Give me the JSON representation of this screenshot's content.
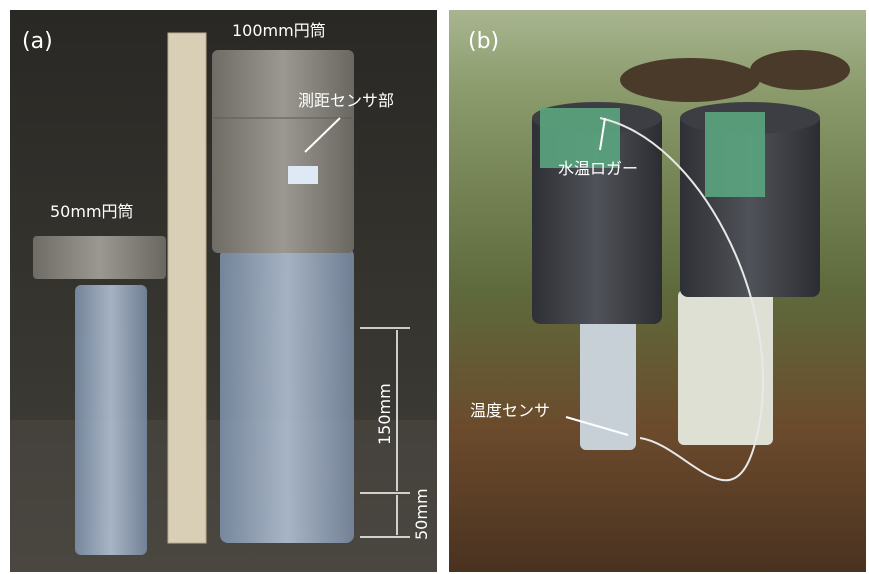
{
  "panels": [
    {
      "label": "(a)",
      "annotations": [
        "100mm円筒",
        "測距センサ部",
        "50mm円筒",
        "150mm",
        "50mm"
      ]
    },
    {
      "label": "(b)",
      "annotations": [
        "水温ロガー",
        "温度センサ"
      ]
    }
  ]
}
